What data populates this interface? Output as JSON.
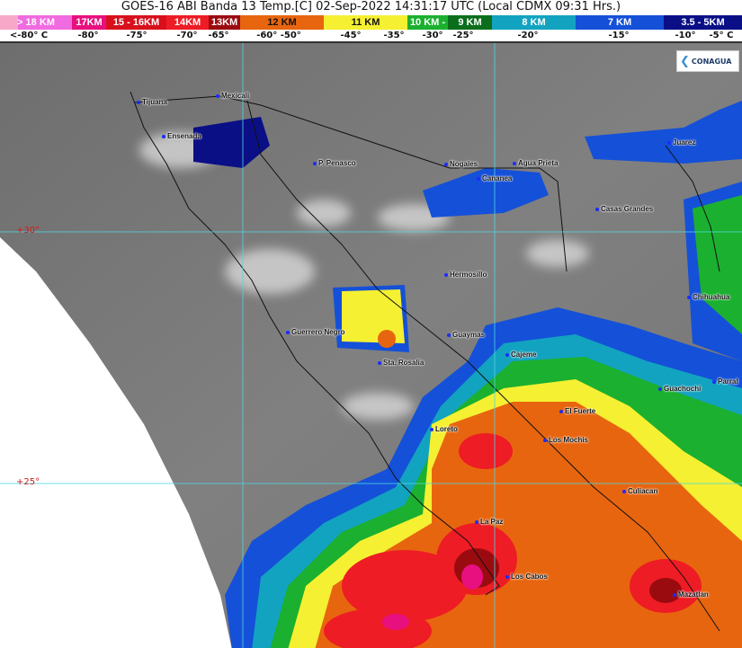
{
  "header": {
    "title": "GOES-16 ABI Banda 13 Temp.[C] 02-Sep-2022 14:31:17 UTC (Local CDMX  09:31 Hrs.)"
  },
  "legend": {
    "altitudes": [
      {
        "label": "> 18 KM",
        "color": "#f06be0"
      },
      {
        "label": "17KM",
        "color": "#e8107f"
      },
      {
        "label": "15 - 16KM",
        "color": "#d7101c"
      },
      {
        "label": "14KM",
        "color": "#ee1c24"
      },
      {
        "label": "13KM",
        "color": "#9a0b10"
      },
      {
        "label": "12 KM",
        "color": "#e8650f"
      },
      {
        "label": "11 KM",
        "color": "#f5f032"
      },
      {
        "label": "10 KM -",
        "color": "#1bb02f"
      },
      {
        "label": "9 KM",
        "color": "#0b6e1c"
      },
      {
        "label": "8 KM",
        "color": "#12a3c0"
      },
      {
        "label": "7 KM",
        "color": "#1550d8"
      },
      {
        "label": "3.5 - 5KM",
        "color": "#0b0f86"
      }
    ],
    "temperatures": [
      "<-80° C",
      "-80°",
      "-75°",
      "-70°",
      "-65°",
      "-60°  -50°",
      "-45°",
      "-35°",
      "-30°",
      "-25°",
      "-20°",
      "-15°",
      "-10°",
      "-5°  C"
    ]
  },
  "map": {
    "logo_text": "CONAGUA",
    "latitudes": [
      "+30°",
      "+25°"
    ],
    "cities": [
      "Tijuana",
      "Mexicali",
      "Ensenada",
      "P. Penasco",
      "Nogales",
      "Agua Prieta",
      "Cananea",
      "Juarez",
      "Casas Grandes",
      "Hermosillo",
      "Chihuahua",
      "Guerrero Negro",
      "Guaymas",
      "Cajeme",
      "Sta. Rosalia",
      "Guachochi",
      "Parral",
      "El Fuerte",
      "Loreto",
      "Los Mochis",
      "Culiacan",
      "La Paz",
      "Los Cabos",
      "Mazatlan"
    ]
  }
}
